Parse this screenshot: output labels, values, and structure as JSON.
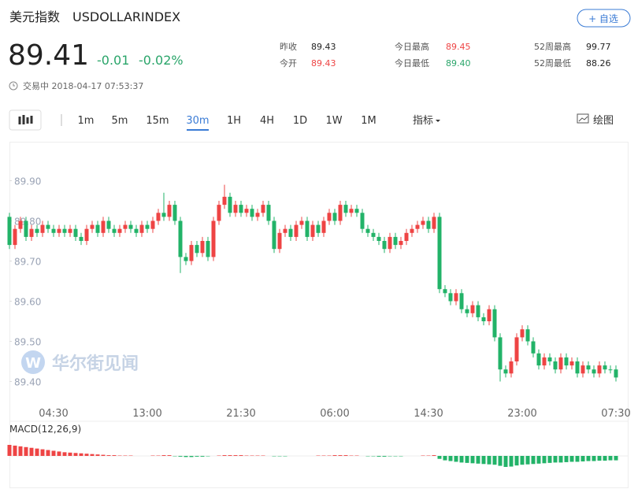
{
  "header": {
    "title": "美元指数",
    "code": "USDOLLARINDEX",
    "button": "+ 自选"
  },
  "quote": {
    "price": "89.41",
    "change": "-0.01",
    "change_pct": "-0.02%",
    "status": "交易中 2018-04-17 07:53:37"
  },
  "stats": [
    {
      "label": "昨收",
      "value": "89.43"
    },
    {
      "label": "今开",
      "value": "89.43"
    },
    {
      "label": "今日最高",
      "value": "89.45"
    },
    {
      "label": "今日最低",
      "value": "89.40"
    },
    {
      "label": "52周最高",
      "value": "99.77"
    },
    {
      "label": "52周最低",
      "value": "88.26"
    }
  ],
  "toolbar": {
    "periods": [
      "1m",
      "5m",
      "15m",
      "30m",
      "1H",
      "4H",
      "1D",
      "1W",
      "1M"
    ],
    "indicator": "指标",
    "draw": "绘图"
  },
  "watermark": "华尔街见闻",
  "chart_data": {
    "type": "candlestick",
    "up_color": "#ee4444",
    "down_color": "#22b368",
    "categories": [
      null,
      null,
      null,
      null,
      null,
      null,
      null,
      null,
      "04:30",
      null,
      null,
      null,
      null,
      null,
      null,
      null,
      null,
      null,
      null,
      null,
      null,
      null,
      null,
      null,
      null,
      "13:00",
      null,
      null,
      null,
      null,
      null,
      null,
      null,
      null,
      null,
      null,
      null,
      null,
      null,
      null,
      null,
      null,
      "21:30",
      null,
      null,
      null,
      null,
      null,
      null,
      null,
      null,
      null,
      null,
      null,
      null,
      null,
      null,
      null,
      null,
      "06:00",
      null,
      null,
      null,
      null,
      null,
      null,
      null,
      null,
      null,
      null,
      null,
      null,
      null,
      null,
      null,
      null,
      "14:30",
      null,
      null,
      null,
      null,
      null,
      null,
      null,
      null,
      null,
      null,
      null,
      null,
      null,
      null,
      null,
      null,
      "23:00",
      null,
      null,
      null,
      null,
      null,
      null,
      null,
      null,
      null,
      null,
      null,
      null,
      null,
      null,
      null,
      null,
      "07:30"
    ],
    "open": [
      89.81,
      89.74,
      89.78,
      89.8,
      89.76,
      89.78,
      89.77,
      89.79,
      89.78,
      89.77,
      89.78,
      89.77,
      89.78,
      89.76,
      89.75,
      89.78,
      89.79,
      89.77,
      89.8,
      89.78,
      89.77,
      89.78,
      89.79,
      89.78,
      89.77,
      89.79,
      89.78,
      89.8,
      89.82,
      89.81,
      89.84,
      89.8,
      89.71,
      89.7,
      89.74,
      89.72,
      89.75,
      89.71,
      89.8,
      89.84,
      89.86,
      89.82,
      89.84,
      89.82,
      89.83,
      89.81,
      89.82,
      89.84,
      89.8,
      89.73,
      89.77,
      89.78,
      89.76,
      89.79,
      89.8,
      89.76,
      89.79,
      89.77,
      89.8,
      89.82,
      89.8,
      89.84,
      89.82,
      89.83,
      89.82,
      89.78,
      89.77,
      89.76,
      89.75,
      89.73,
      89.76,
      89.74,
      89.75,
      89.77,
      89.78,
      89.79,
      89.8,
      89.78,
      89.81,
      89.63,
      89.62,
      89.6,
      89.62,
      89.58,
      89.57,
      89.59,
      89.56,
      89.55,
      89.58,
      89.51,
      89.43,
      89.42,
      89.45,
      89.51,
      89.53,
      89.5,
      89.47,
      89.44,
      89.46,
      89.45,
      89.43,
      89.46,
      89.44,
      89.45,
      89.42,
      89.44,
      89.43,
      89.42,
      89.44,
      89.43,
      89.43
    ],
    "high": [
      89.82,
      89.79,
      89.81,
      89.81,
      89.79,
      89.79,
      89.8,
      89.8,
      89.79,
      89.79,
      89.79,
      89.79,
      89.79,
      89.77,
      89.79,
      89.8,
      89.8,
      89.81,
      89.81,
      89.79,
      89.79,
      89.8,
      89.8,
      89.79,
      89.8,
      89.8,
      89.81,
      89.83,
      89.87,
      89.85,
      89.85,
      89.81,
      89.72,
      89.75,
      89.75,
      89.76,
      89.76,
      89.81,
      89.85,
      89.89,
      89.87,
      89.85,
      89.85,
      89.84,
      89.84,
      89.83,
      89.85,
      89.85,
      89.81,
      89.78,
      89.79,
      89.79,
      89.8,
      89.81,
      89.81,
      89.8,
      89.8,
      89.81,
      89.83,
      89.83,
      89.85,
      89.85,
      89.84,
      89.84,
      89.83,
      89.79,
      89.78,
      89.77,
      89.76,
      89.77,
      89.77,
      89.76,
      89.78,
      89.79,
      89.8,
      89.81,
      89.81,
      89.82,
      89.82,
      89.64,
      89.63,
      89.63,
      89.63,
      89.59,
      89.6,
      89.6,
      89.57,
      89.59,
      89.59,
      89.52,
      89.44,
      89.46,
      89.52,
      89.54,
      89.54,
      89.51,
      89.48,
      89.47,
      89.47,
      89.46,
      89.47,
      89.47,
      89.46,
      89.46,
      89.45,
      89.45,
      89.44,
      89.45,
      89.45,
      89.44,
      89.44
    ],
    "low": [
      89.73,
      89.73,
      89.77,
      89.75,
      89.75,
      89.76,
      89.76,
      89.77,
      89.76,
      89.76,
      89.76,
      89.76,
      89.75,
      89.74,
      89.74,
      89.77,
      89.76,
      89.76,
      89.77,
      89.76,
      89.76,
      89.77,
      89.77,
      89.76,
      89.76,
      89.77,
      89.77,
      89.79,
      89.8,
      89.8,
      89.79,
      89.67,
      89.69,
      89.69,
      89.71,
      89.71,
      89.7,
      89.7,
      89.79,
      89.83,
      89.81,
      89.81,
      89.81,
      89.81,
      89.8,
      89.8,
      89.81,
      89.79,
      89.72,
      89.72,
      89.76,
      89.75,
      89.75,
      89.78,
      89.75,
      89.75,
      89.76,
      89.76,
      89.79,
      89.79,
      89.79,
      89.81,
      89.81,
      89.81,
      89.77,
      89.76,
      89.75,
      89.74,
      89.72,
      89.72,
      89.73,
      89.73,
      89.74,
      89.76,
      89.77,
      89.78,
      89.77,
      89.77,
      89.62,
      89.61,
      89.59,
      89.59,
      89.57,
      89.56,
      89.56,
      89.55,
      89.54,
      89.54,
      89.5,
      89.4,
      89.41,
      89.41,
      89.44,
      89.5,
      89.49,
      89.46,
      89.43,
      89.43,
      89.44,
      89.42,
      89.42,
      89.43,
      89.43,
      89.41,
      89.41,
      89.42,
      89.41,
      89.41,
      89.42,
      89.42,
      89.4
    ],
    "close": [
      89.74,
      89.78,
      89.8,
      89.76,
      89.78,
      89.77,
      89.79,
      89.78,
      89.77,
      89.78,
      89.77,
      89.78,
      89.76,
      89.75,
      89.78,
      89.79,
      89.77,
      89.8,
      89.78,
      89.77,
      89.78,
      89.79,
      89.78,
      89.77,
      89.79,
      89.78,
      89.8,
      89.82,
      89.81,
      89.84,
      89.8,
      89.71,
      89.7,
      89.74,
      89.72,
      89.75,
      89.71,
      89.8,
      89.84,
      89.86,
      89.82,
      89.84,
      89.82,
      89.83,
      89.81,
      89.82,
      89.84,
      89.8,
      89.73,
      89.77,
      89.78,
      89.76,
      89.79,
      89.8,
      89.76,
      89.79,
      89.77,
      89.8,
      89.82,
      89.8,
      89.84,
      89.82,
      89.83,
      89.82,
      89.78,
      89.77,
      89.76,
      89.75,
      89.73,
      89.76,
      89.74,
      89.75,
      89.77,
      89.78,
      89.79,
      89.8,
      89.78,
      89.81,
      89.63,
      89.62,
      89.6,
      89.62,
      89.58,
      89.57,
      89.59,
      89.56,
      89.55,
      89.58,
      89.51,
      89.43,
      89.42,
      89.45,
      89.51,
      89.53,
      89.5,
      89.47,
      89.44,
      89.46,
      89.45,
      89.43,
      89.46,
      89.44,
      89.45,
      89.42,
      89.44,
      89.43,
      89.42,
      89.44,
      89.43,
      89.43,
      89.41
    ],
    "ylim": [
      89.35,
      89.98
    ],
    "yticks": [
      {
        "value": 89.4,
        "label": "89.40"
      },
      {
        "value": 89.5,
        "label": "89.50"
      },
      {
        "value": 89.6,
        "label": "89.60"
      },
      {
        "value": 89.7,
        "label": "89.70"
      },
      {
        "value": 89.8,
        "label": "89.80"
      },
      {
        "value": 89.9,
        "label": "89.90"
      }
    ],
    "macd": {
      "label": "MACD(12,26,9)",
      "ylim": [
        -0.045,
        0.045
      ],
      "values": [
        0.03,
        0.028,
        0.026,
        0.024,
        0.022,
        0.02,
        0.018,
        0.016,
        0.014,
        0.012,
        0.01,
        0.009,
        0.008,
        0.007,
        0.006,
        0.005,
        0.004,
        0.003,
        0.002,
        0.002,
        0.001,
        0.001,
        0.001,
        0.0,
        0.0,
        0.0,
        0.001,
        0.001,
        0.002,
        0.002,
        -0.001,
        -0.002,
        -0.003,
        -0.003,
        -0.002,
        -0.002,
        -0.001,
        0.0,
        0.001,
        0.002,
        0.002,
        0.002,
        0.002,
        0.001,
        0.001,
        0.001,
        0.001,
        0.0,
        -0.001,
        -0.001,
        -0.001,
        0.0,
        0.0,
        0.0,
        0.0,
        0.0,
        0.001,
        0.001,
        0.001,
        0.002,
        0.002,
        0.002,
        0.001,
        0.001,
        0.0,
        -0.001,
        -0.001,
        -0.002,
        -0.002,
        -0.001,
        -0.001,
        -0.001,
        0.0,
        0.0,
        0.0,
        0.001,
        0.001,
        0.002,
        -0.008,
        -0.012,
        -0.014,
        -0.016,
        -0.018,
        -0.019,
        -0.02,
        -0.021,
        -0.022,
        -0.023,
        -0.024,
        -0.027,
        -0.03,
        -0.029,
        -0.026,
        -0.024,
        -0.023,
        -0.022,
        -0.021,
        -0.02,
        -0.019,
        -0.018,
        -0.018,
        -0.017,
        -0.016,
        -0.016,
        -0.015,
        -0.014,
        -0.014,
        -0.013,
        -0.013,
        -0.012,
        -0.012
      ]
    }
  }
}
